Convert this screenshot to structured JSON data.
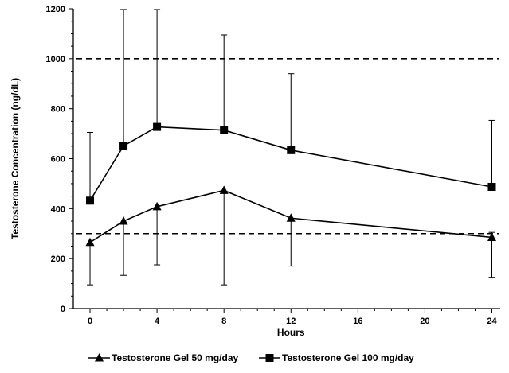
{
  "chart_data": {
    "type": "line",
    "xlabel": "Hours",
    "ylabel": "Testosterone  Concentration (ng/dL)",
    "x_ticks": [
      0,
      4,
      8,
      12,
      16,
      20,
      24
    ],
    "y_ticks": [
      0,
      200,
      400,
      600,
      800,
      1000,
      1200
    ],
    "xlim": [
      -1,
      24.5
    ],
    "ylim": [
      0,
      1200
    ],
    "grid": false,
    "legend_position": "bottom",
    "reference_lines": [
      {
        "y": 1000,
        "style": "dashed"
      },
      {
        "y": 300,
        "style": "dashed"
      }
    ],
    "x": [
      0,
      2,
      4,
      8,
      12,
      24
    ],
    "series": [
      {
        "name": "Testosterone Gel 50 mg/day",
        "marker": "triangle",
        "values": [
          265,
          350,
          408,
          473,
          362,
          285
        ],
        "error_low": [
          95,
          133,
          175,
          95,
          170,
          125
        ],
        "error_high": [
          265,
          350,
          408,
          473,
          362,
          305
        ]
      },
      {
        "name": "Testosterone Gel 100 mg/day",
        "marker": "square",
        "values": [
          432,
          651,
          727,
          714,
          634,
          487
        ],
        "error_low": [
          432,
          651,
          727,
          714,
          634,
          487
        ],
        "error_high": [
          705,
          1197,
          1197,
          1095,
          940,
          753
        ]
      }
    ],
    "colors": {
      "line": "#000000",
      "background": "#ffffff"
    }
  }
}
